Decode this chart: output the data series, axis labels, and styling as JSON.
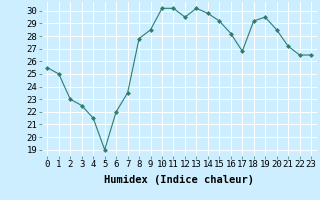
{
  "x": [
    0,
    1,
    2,
    3,
    4,
    5,
    6,
    7,
    8,
    9,
    10,
    11,
    12,
    13,
    14,
    15,
    16,
    17,
    18,
    19,
    20,
    21,
    22,
    23
  ],
  "y": [
    25.5,
    25.0,
    23.0,
    22.5,
    21.5,
    19.0,
    22.0,
    23.5,
    27.8,
    28.5,
    30.2,
    30.2,
    29.5,
    30.2,
    29.8,
    29.2,
    28.2,
    26.8,
    29.2,
    29.5,
    28.5,
    27.2,
    26.5,
    26.5
  ],
  "line_color": "#2e7d6e",
  "marker": "D",
  "marker_size": 2,
  "bg_color": "#cceeff",
  "grid_color": "#ffffff",
  "xlabel": "Humidex (Indice chaleur)",
  "xlabel_fontsize": 7.5,
  "tick_fontsize": 6.5,
  "ylim": [
    18.5,
    30.7
  ],
  "xlim": [
    -0.5,
    23.5
  ],
  "yticks": [
    19,
    20,
    21,
    22,
    23,
    24,
    25,
    26,
    27,
    28,
    29,
    30
  ],
  "xticks": [
    0,
    1,
    2,
    3,
    4,
    5,
    6,
    7,
    8,
    9,
    10,
    11,
    12,
    13,
    14,
    15,
    16,
    17,
    18,
    19,
    20,
    21,
    22,
    23
  ]
}
